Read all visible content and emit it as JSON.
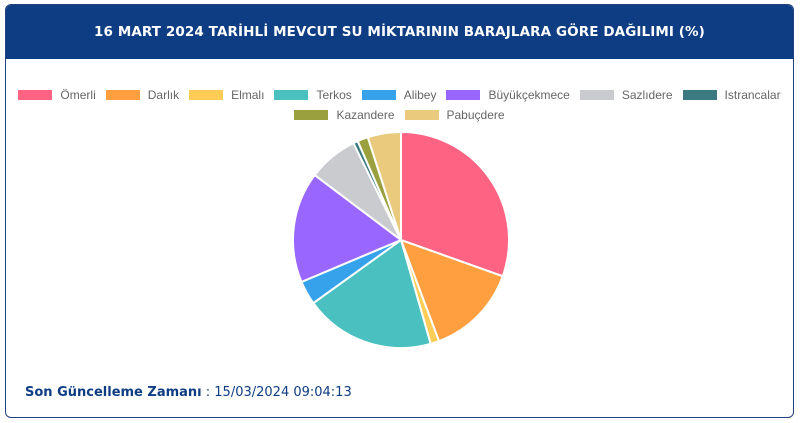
{
  "header": {
    "title": "16 MART 2024 TARİHLİ MEVCUT SU MİKTARININ BARAJLARA GÖRE DAĞILIMI (%)"
  },
  "footer": {
    "label": "Son Güncelleme Zamanı",
    "separator": " : ",
    "value": "15/03/2024 09:04:13"
  },
  "colors": {
    "header_bg": "#0f3d83",
    "footer_text": "#0f3d83"
  },
  "chart_data": {
    "type": "pie",
    "title": "",
    "legend_position": "top",
    "categories": [
      "Ömerli",
      "Darlık",
      "Elmalı",
      "Terkos",
      "Alibey",
      "Büyükçekmece",
      "Sazlıdere",
      "Istrancalar",
      "Kazandere",
      "Pabuçdere"
    ],
    "values": [
      30.6,
      13.9,
      1.3,
      19.6,
      3.6,
      16.7,
      7.5,
      0.7,
      1.6,
      5.0
    ],
    "colors": [
      "#ff6384",
      "#ff9f40",
      "#ffcd56",
      "#4bc0c0",
      "#36a2eb",
      "#9966ff",
      "#c9cbcf",
      "#3b7a80",
      "#9aa03e",
      "#eacb7d"
    ]
  }
}
